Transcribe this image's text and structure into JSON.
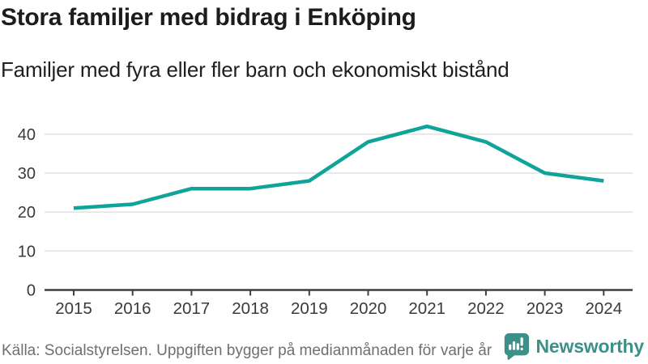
{
  "header": {
    "title": "Stora familjer med bidrag i Enköping",
    "subtitle": "Familjer med fyra eller fler barn och ekonomiskt bistånd"
  },
  "chart_data": {
    "type": "line",
    "x": [
      2015,
      2016,
      2017,
      2018,
      2019,
      2020,
      2021,
      2022,
      2023,
      2024
    ],
    "series": [
      {
        "name": "Familjer med fyra eller fler barn och ekonomiskt bistånd",
        "values": [
          21,
          22,
          26,
          26,
          28,
          38,
          42,
          38,
          30,
          28
        ],
        "color": "#0fa399"
      }
    ],
    "title": "Stora familjer med bidrag i Enköping",
    "xlabel": "",
    "ylabel": "",
    "ylim": [
      0,
      45
    ],
    "yticks": [
      0,
      10,
      20,
      30,
      40
    ],
    "grid": true,
    "legend": "none",
    "colors": {
      "gridline": "#e3e3e3",
      "axis": "#3f3f3f",
      "tick_label": "#3a3a3a"
    }
  },
  "footer": {
    "source": "Källa: Socialstyrelsen. Uppgiften bygger på medianmånaden för varje år"
  },
  "branding": {
    "wordmark": "Newsworthy",
    "icon": "newsworthy-chart-bubble-icon",
    "color": "#3d9089"
  }
}
